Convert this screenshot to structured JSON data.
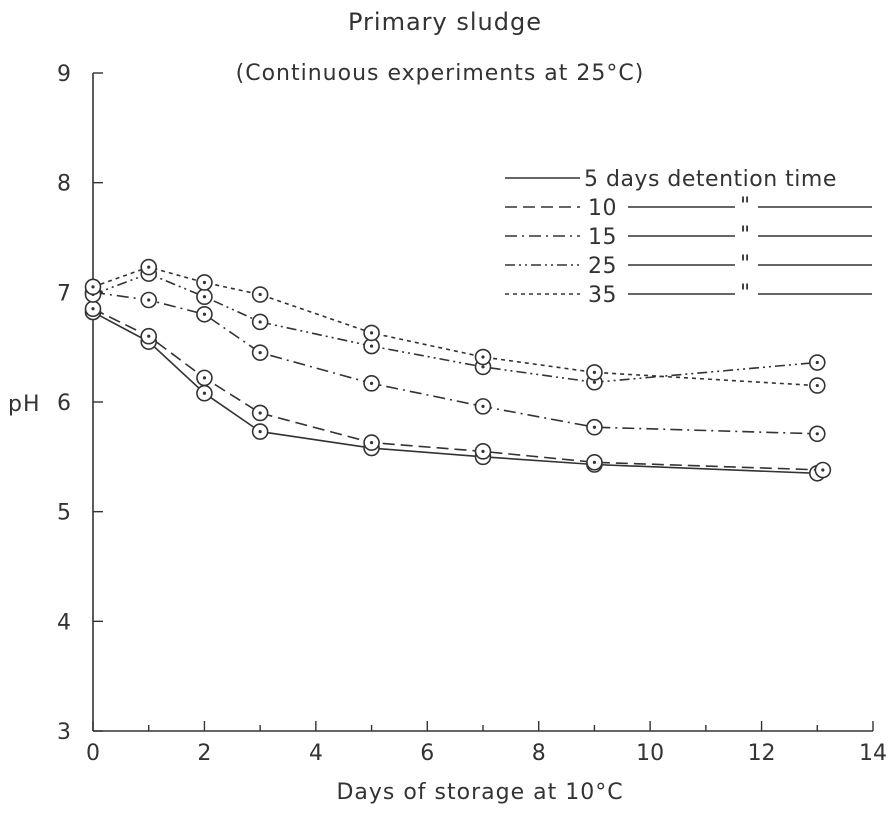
{
  "chart_data": {
    "type": "line",
    "title": "Primary sludge",
    "subtitle": "(Continuous experiments at 25°C)",
    "xlabel": "Days of storage at 10°C",
    "ylabel": "pH",
    "xlim": [
      0,
      14
    ],
    "ylim": [
      3,
      9
    ],
    "x_ticks": [
      "0",
      "2",
      "4",
      "6",
      "8",
      "10",
      "12",
      "14"
    ],
    "y_ticks": [
      "3",
      "4",
      "5",
      "6",
      "7",
      "8",
      "9"
    ],
    "grid": false,
    "legend_position": "top-right",
    "legend_suffix": "days detention time",
    "legend_ditto": "\"",
    "series": [
      {
        "name": "5",
        "dash": "solid",
        "x": [
          0,
          1,
          2,
          3,
          5,
          7,
          9,
          13
        ],
        "y": [
          6.82,
          6.55,
          6.08,
          5.73,
          5.58,
          5.5,
          5.43,
          5.35
        ]
      },
      {
        "name": "10",
        "dash": "dashed",
        "x": [
          0,
          1,
          2,
          3,
          5,
          7,
          9,
          13.1
        ],
        "y": [
          6.85,
          6.6,
          6.22,
          5.9,
          5.63,
          5.55,
          5.45,
          5.38
        ]
      },
      {
        "name": "15",
        "dash": "dashdot",
        "x": [
          0,
          1,
          2,
          3,
          5,
          7,
          9,
          13
        ],
        "y": [
          7.0,
          6.93,
          6.8,
          6.45,
          6.17,
          5.96,
          5.77,
          5.71
        ]
      },
      {
        "name": "25",
        "dash": "dashdotdot",
        "x": [
          0,
          1,
          2,
          3,
          5,
          7,
          9,
          13
        ],
        "y": [
          6.98,
          7.17,
          6.96,
          6.73,
          6.51,
          6.32,
          6.18,
          6.36
        ]
      },
      {
        "name": "35",
        "dash": "dotted",
        "x": [
          0,
          1,
          2,
          3,
          5,
          7,
          9,
          13
        ],
        "y": [
          7.05,
          7.23,
          7.09,
          6.98,
          6.63,
          6.41,
          6.27,
          6.15
        ]
      }
    ]
  }
}
